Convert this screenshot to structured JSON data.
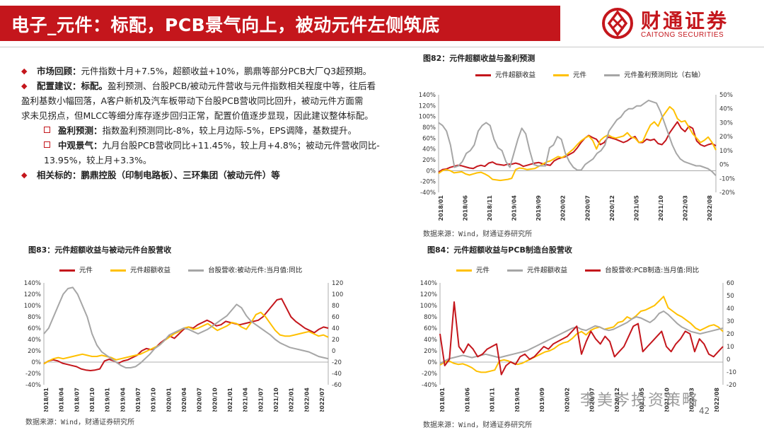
{
  "header": {
    "title": "电子_元件：标配，PCB景气向上，被动元件左侧筑底",
    "logo_name": "财通证券",
    "logo_en": "CAITONG SECURITIES"
  },
  "bullets": {
    "b1_head": "市场回顾：",
    "b1_text": "元件指数十月+7.5%，超额收益+10%，鹏鼎等部分PCB大厂Q3超预期。",
    "b2_head": "配置建议：标配。",
    "b2_text1": "盈利预测、台股PCB/被动元件营收与元件指数相关程度中等，往后看",
    "b2_text2": "盈利基数小幅回落，A客户新机及汽车板带动下台股PCB营收同比回升，被动元件方面需",
    "b2_text3": "求未见拐点，但MLCC等细分库存逐步回归正常，配置价值逐步显现，因此建议整体标配。",
    "s1_head": "盈利预测：",
    "s1_text": "指数盈利预测同比-8%，较上月边际-5%，EPS调降，基数提升。",
    "s2_head": "中观景气：",
    "s2_text1": "九月台股PCB营收同比+11.45%，较上月+4.8%；被动元件营收同比-",
    "s2_text2": "13.95%，较上月+3.3%。",
    "b3_head": "相关标的：",
    "b3_text": "鹏鼎控股（印制电路板）、三环集团（被动元件）等"
  },
  "figures": {
    "fig82_title": "图82：元件超额收益与盈利预测",
    "fig83_title": "图83：元件超额收益与被动元件台股营收",
    "fig84_title": "图84：元件超额收益与PCB制造台股营收",
    "source": "数据来源：Wind，财通证券研究所"
  },
  "watermark": "李美岑投资策略",
  "page_number": "42",
  "colors": {
    "red": "#c4161c",
    "yellow": "#ffc000",
    "gray": "#a6a6a6"
  },
  "chart_data": [
    {
      "id": "fig82",
      "type": "line",
      "x_ticks": [
        "2018/01",
        "2018/06",
        "2018/11",
        "2019/04",
        "2019/09",
        "2020/02",
        "2020/07",
        "2020/12",
        "2021/05",
        "2021/10",
        "2022/03",
        "2022/08"
      ],
      "y_left": {
        "ticks": [
          "140%",
          "120%",
          "100%",
          "80%",
          "60%",
          "40%",
          "20%",
          "0%",
          "-20%",
          "-40%"
        ],
        "range": [
          -40,
          140
        ]
      },
      "y_right": {
        "ticks": [
          "50%",
          "40%",
          "30%",
          "20%",
          "10%",
          "0%",
          "-10%",
          "-20%"
        ],
        "range": [
          -20,
          50
        ]
      },
      "series": [
        {
          "name": "元件超额收益",
          "color": "#c4161c",
          "axis": "left",
          "values": [
            -3,
            2,
            3,
            6,
            8,
            10,
            9,
            7,
            5,
            4,
            8,
            10,
            8,
            14,
            16,
            12,
            11,
            10,
            12,
            12,
            14,
            12,
            8,
            10,
            12,
            14,
            15,
            13,
            11,
            10,
            18,
            22,
            24,
            26,
            30,
            34,
            42,
            52,
            60,
            65,
            61,
            58,
            48,
            52,
            62,
            60,
            58,
            55,
            52,
            55,
            60,
            63,
            52,
            52,
            58,
            56,
            58,
            50,
            48,
            56,
            70,
            80,
            90,
            78,
            72,
            82,
            78,
            55,
            48,
            45,
            48,
            50,
            46
          ]
        },
        {
          "name": "元件",
          "color": "#ffc000",
          "axis": "left",
          "values": [
            -5,
            0,
            2,
            0,
            -4,
            -3,
            -2,
            -6,
            -8,
            -6,
            -4,
            -3,
            -6,
            -10,
            -16,
            -17,
            -18,
            -17,
            -16,
            -14,
            2,
            5,
            4,
            2,
            3,
            4,
            8,
            12,
            16,
            18,
            22,
            26,
            24,
            28,
            34,
            40,
            48,
            55,
            60,
            64,
            56,
            40,
            56,
            62,
            66,
            62,
            60,
            62,
            64,
            70,
            62,
            60,
            52,
            54,
            70,
            84,
            90,
            82,
            98,
            108,
            118,
            112,
            96,
            90,
            92,
            80,
            68,
            60,
            52,
            56,
            62,
            52,
            38
          ]
        },
        {
          "name": "元件盈利预测同比（右轴）",
          "color": "#a6a6a6",
          "axis": "right",
          "values": [
            30,
            28,
            24,
            14,
            -2,
            -1,
            2,
            8,
            10,
            14,
            24,
            28,
            30,
            28,
            18,
            12,
            10,
            2,
            -2,
            8,
            18,
            26,
            22,
            10,
            0,
            -1,
            -1,
            -1,
            12,
            14,
            20,
            18,
            8,
            2,
            -2,
            -4,
            -4,
            0,
            2,
            4,
            8,
            10,
            14,
            24,
            28,
            32,
            34,
            38,
            40,
            40,
            42,
            42,
            44,
            46,
            45,
            44,
            38,
            30,
            22,
            14,
            8,
            4,
            2,
            1,
            0,
            -1,
            -1,
            -2,
            -3,
            -5,
            -8
          ]
        }
      ]
    },
    {
      "id": "fig83",
      "type": "line",
      "x_ticks": [
        "2018/01",
        "2018/04",
        "2018/07",
        "2018/10",
        "2019/01",
        "2019/04",
        "2019/07",
        "2019/10",
        "2020/01",
        "2020/04",
        "2020/07",
        "2020/10",
        "2021/01",
        "2021/04",
        "2021/07",
        "2021/10",
        "2022/01",
        "2022/04",
        "2022/07"
      ],
      "y_left": {
        "ticks": [
          "140%",
          "120%",
          "100%",
          "80%",
          "60%",
          "40%",
          "20%",
          "0%",
          "-20%",
          "-40%"
        ],
        "range": [
          -40,
          140
        ]
      },
      "y_right": {
        "ticks": [
          "120",
          "100",
          "80",
          "60",
          "40",
          "20",
          "0",
          "-20",
          "-40",
          "-60"
        ],
        "range": [
          -60,
          120
        ]
      },
      "series": [
        {
          "name": "元件",
          "color": "#c4161c",
          "axis": "left",
          "values": [
            -3,
            2,
            4,
            2,
            -2,
            -4,
            -6,
            -8,
            -12,
            -14,
            -15,
            -14,
            -12,
            2,
            5,
            2,
            -2,
            2,
            4,
            8,
            12,
            20,
            24,
            22,
            26,
            34,
            40,
            46,
            42,
            50,
            58,
            62,
            60,
            66,
            70,
            74,
            70,
            64,
            66,
            72,
            70,
            68,
            66,
            68,
            70,
            72,
            74,
            80,
            90,
            100,
            110,
            112,
            96,
            80,
            72,
            66,
            60,
            56,
            52,
            58,
            62,
            60
          ]
        },
        {
          "name": "元件超额收益",
          "color": "#ffc000",
          "axis": "left",
          "values": [
            -3,
            2,
            6,
            8,
            6,
            8,
            10,
            12,
            14,
            12,
            10,
            10,
            12,
            10,
            8,
            4,
            6,
            8,
            10,
            12,
            14,
            18,
            22,
            26,
            30,
            38,
            44,
            50,
            54,
            60,
            62,
            58,
            60,
            64,
            68,
            62,
            56,
            60,
            64,
            70,
            68,
            62,
            58,
            70,
            84,
            88,
            80,
            68,
            56,
            48,
            46,
            46,
            48,
            50,
            52,
            54,
            50,
            46,
            48,
            44
          ]
        },
        {
          "name": "台股营收:被动元件:当月值:同比",
          "color": "#a6a6a6",
          "axis": "right",
          "values": [
            30,
            40,
            60,
            80,
            100,
            110,
            112,
            100,
            80,
            60,
            30,
            10,
            -2,
            -8,
            -14,
            -20,
            -26,
            -30,
            -30,
            -28,
            -22,
            -14,
            -6,
            4,
            10,
            18,
            28,
            32,
            36,
            40,
            38,
            34,
            30,
            34,
            38,
            44,
            50,
            56,
            62,
            72,
            82,
            76,
            62,
            52,
            46,
            40,
            34,
            28,
            20,
            14,
            10,
            6,
            4,
            2,
            0,
            -2,
            -6,
            -10,
            -12,
            -14
          ]
        }
      ]
    },
    {
      "id": "fig84",
      "type": "line",
      "x_ticks": [
        "2018/01",
        "2018/06",
        "2018/11",
        "2019/04",
        "2019/09",
        "2020/02",
        "2020/07",
        "2020/12",
        "2021/05",
        "2021/10",
        "2022/03",
        "2022/08"
      ],
      "y_left": {
        "ticks": [
          "140%",
          "120%",
          "100%",
          "80%",
          "60%",
          "40%",
          "20%",
          "0%",
          "-20%",
          "-40%"
        ],
        "range": [
          -40,
          140
        ]
      },
      "y_right": {
        "ticks": [
          "60",
          "50",
          "40",
          "30",
          "20",
          "10",
          "0",
          "-10",
          "-20"
        ],
        "range": [
          -20,
          60
        ]
      },
      "series": [
        {
          "name": "元件",
          "color": "#ffc000",
          "axis": "left",
          "values": [
            -5,
            0,
            2,
            -2,
            -4,
            -3,
            -6,
            -10,
            -16,
            -18,
            -18,
            -16,
            -14,
            2,
            4,
            2,
            -2,
            -4,
            -2,
            2,
            6,
            10,
            14,
            18,
            20,
            24,
            30,
            34,
            36,
            42,
            50,
            54,
            48,
            56,
            60,
            62,
            58,
            60,
            62,
            70,
            72,
            80,
            76,
            82,
            90,
            92,
            96,
            100,
            108,
            116,
            96,
            90,
            84,
            80,
            74,
            68,
            60,
            56,
            60,
            64,
            66,
            62,
            54
          ]
        },
        {
          "name": "元件超额收益",
          "color": "#a6a6a6",
          "axis": "left",
          "values": [
            -3,
            2,
            6,
            8,
            10,
            12,
            10,
            8,
            10,
            12,
            14,
            12,
            10,
            8,
            10,
            12,
            14,
            16,
            18,
            20,
            24,
            28,
            32,
            36,
            40,
            44,
            48,
            52,
            56,
            60,
            62,
            58,
            56,
            60,
            64,
            62,
            58,
            56,
            58,
            62,
            66,
            70,
            76,
            80,
            78,
            74,
            70,
            76,
            86,
            90,
            84,
            76,
            68,
            62,
            58,
            54,
            52,
            50,
            52,
            54,
            56,
            58,
            60
          ]
        },
        {
          "name": "台股营收:PCB制造:当月值:同比",
          "color": "#c4161c",
          "axis": "right",
          "values": [
            20,
            -5,
            0,
            45,
            10,
            5,
            12,
            8,
            2,
            4,
            8,
            10,
            12,
            -12,
            -5,
            -2,
            -4,
            2,
            4,
            0,
            2,
            6,
            10,
            8,
            12,
            14,
            16,
            18,
            22,
            26,
            4,
            14,
            22,
            16,
            12,
            18,
            14,
            2,
            6,
            10,
            18,
            26,
            28,
            6,
            10,
            14,
            18,
            22,
            10,
            6,
            12,
            16,
            22,
            20,
            6,
            16,
            12,
            4,
            2,
            6,
            10
          ]
        }
      ]
    }
  ]
}
